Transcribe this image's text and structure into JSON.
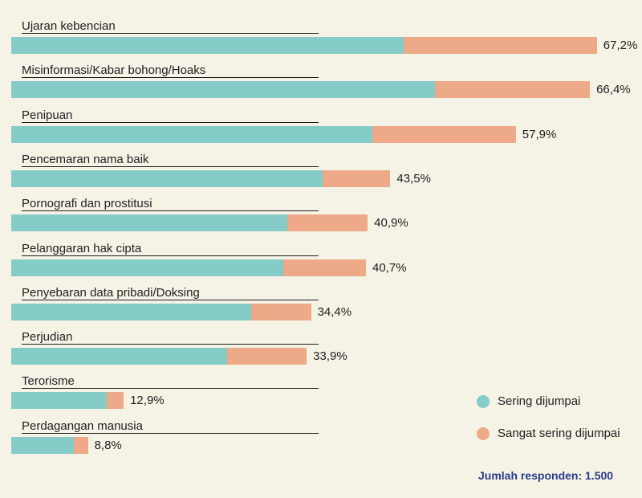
{
  "chart_data": {
    "type": "bar",
    "orientation": "horizontal",
    "stacked": true,
    "categories": [
      "Ujaran kebencian",
      "Misinformasi/Kabar bohong/Hoaks",
      "Penipuan",
      "Pencemaran nama baik",
      "Pornografi dan prostitusi",
      "Pelanggaran hak cipta",
      "Penyebaran data pribadi/Doksing",
      "Perjudian",
      "Terorisme",
      "Perdagangan manusia"
    ],
    "series": [
      {
        "name": "Sering dijumpai",
        "color": "#85cbc8",
        "values": [
          45.0,
          48.6,
          41.4,
          35.7,
          31.7,
          31.2,
          27.5,
          24.8,
          11.0,
          7.2
        ]
      },
      {
        "name": "Sangat sering dijumpai",
        "color": "#eda988",
        "values": [
          22.2,
          17.8,
          16.5,
          7.8,
          9.2,
          9.5,
          6.9,
          9.1,
          1.9,
          1.6
        ]
      }
    ],
    "totals": [
      67.2,
      66.4,
      57.9,
      43.5,
      40.9,
      40.7,
      34.4,
      33.9,
      12.9,
      8.8
    ],
    "total_labels": [
      "67,2%",
      "66,4%",
      "57,9%",
      "43,5%",
      "40,9%",
      "40,7%",
      "34,4%",
      "33,9%",
      "12,9%",
      "8,8%"
    ],
    "xlim": [
      0,
      100
    ],
    "legend_position": "bottom-right",
    "footnote": "Jumlah responden: 1.500"
  }
}
